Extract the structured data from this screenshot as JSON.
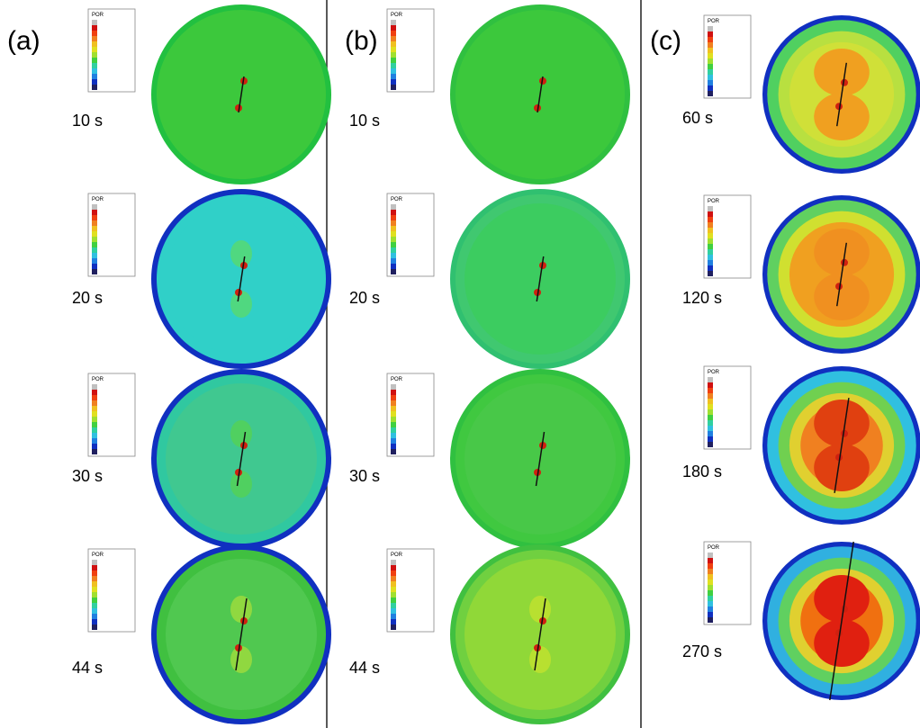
{
  "panels": [
    {
      "label": "(a)",
      "frames": [
        {
          "time": "10 s",
          "legend": "POR"
        },
        {
          "time": "20 s",
          "legend": "POR"
        },
        {
          "time": "30 s",
          "legend": "POR"
        },
        {
          "time": "44 s",
          "legend": "POR"
        }
      ]
    },
    {
      "label": "(b)",
      "frames": [
        {
          "time": "10 s",
          "legend": "POR"
        },
        {
          "time": "20 s",
          "legend": "POR"
        },
        {
          "time": "30 s",
          "legend": "POR"
        },
        {
          "time": "44 s",
          "legend": "POR"
        }
      ]
    },
    {
      "label": "(c)",
      "frames": [
        {
          "time": "60 s",
          "legend": "POR"
        },
        {
          "time": "120 s",
          "legend": "POR"
        },
        {
          "time": "180 s",
          "legend": "POR"
        },
        {
          "time": "270 s",
          "legend": "POR"
        }
      ]
    }
  ]
}
